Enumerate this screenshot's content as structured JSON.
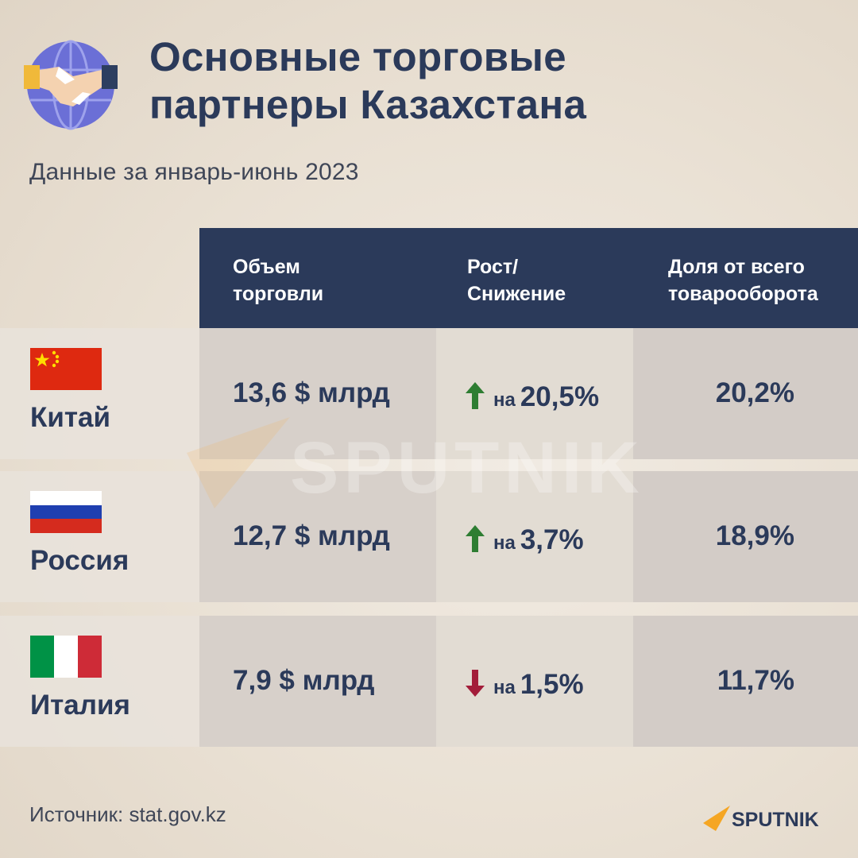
{
  "title_line1": "Основные торговые",
  "title_line2": "партнеры Казахстана",
  "subtitle": "Данные за январь-июнь 2023",
  "columns": {
    "volume": [
      "Объем",
      "торговли"
    ],
    "growth": [
      "Рост/",
      "Снижение"
    ],
    "share": [
      "Доля от всего",
      "товарооборота"
    ]
  },
  "rows": [
    {
      "country": "Китай",
      "volume": "13,6 $ млрд",
      "direction": "up",
      "na": "на",
      "growth": "20,5%",
      "share": "20,2%"
    },
    {
      "country": "Россия",
      "volume": "12,7 $ млрд",
      "direction": "up",
      "na": "на",
      "growth": "3,7%",
      "share": "18,9%"
    },
    {
      "country": "Италия",
      "volume": "7,9 $ млрд",
      "direction": "down",
      "na": "на",
      "growth": "1,5%",
      "share": "11,7%"
    }
  ],
  "source": "Источник: stat.gov.kz",
  "brand": "SPUTNIK",
  "watermark": "SPUTNIK",
  "icons": {
    "logo": "handshake-globe-icon",
    "up": "arrow-up-icon",
    "down": "arrow-down-icon"
  },
  "colors": {
    "navy": "#2b3a5a",
    "up": "#2e7d32",
    "down": "#a31d3a",
    "brand_accent": "#f5a623"
  },
  "chart_data": {
    "type": "table",
    "title": "Основные торговые партнеры Казахстана",
    "subtitle": "Данные за январь-июнь 2023",
    "columns": [
      "",
      "Объем торговли",
      "Рост/ Снижение",
      "Доля от всего товарооборота"
    ],
    "categories": [
      "Китай",
      "Россия",
      "Италия"
    ],
    "series": [
      {
        "name": "Объем торговли",
        "values": [
          13.6,
          12.7,
          7.9
        ]
      },
      {
        "name": "Рост/ Снижение",
        "values": [
          20.5,
          3.7,
          -1.5
        ]
      },
      {
        "name": "Доля от всего товарооборота",
        "values": [
          20.2,
          18.9,
          11.7
        ]
      }
    ]
  }
}
